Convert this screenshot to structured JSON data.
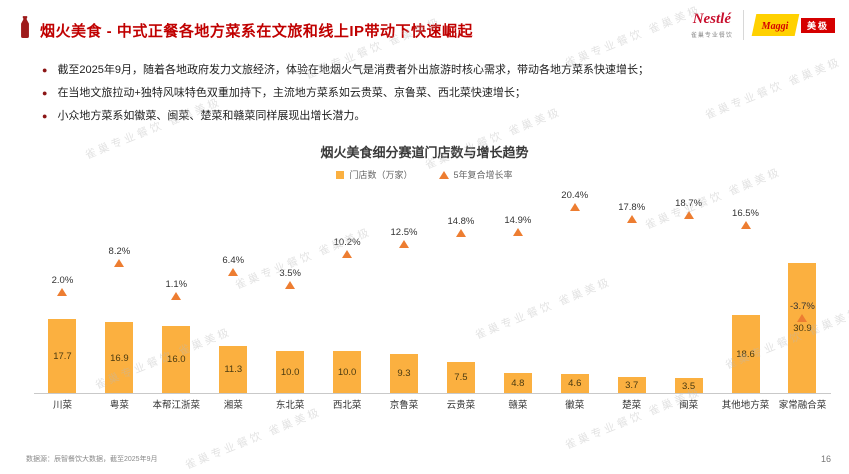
{
  "header": {
    "title": "烟火美食 - 中式正餐各地方菜系在文旅和线上IP带动下快速崛起",
    "nestle_logo": "Nestlé",
    "nestle_sub": "雀巢专业餐饮",
    "maggi_logo": "Maggi",
    "maggi_sub": "美极"
  },
  "bullets": [
    "截至2025年9月，随着各地政府发力文旅经济，体验在地烟火气是消费者外出旅游时核心需求，带动各地方菜系快速增长；",
    "在当地文旅拉动+独特风味特色双重加持下，主流地方菜系如云贵菜、京鲁菜、西北菜快速增长；",
    "小众地方菜系如徽菜、闽菜、楚菜和赣菜同样展现出增长潜力。"
  ],
  "chart_data": {
    "type": "bar",
    "title": "烟火美食细分赛道门店数与增长趋势",
    "legend": [
      "门店数（万家）",
      "5年复合增长率"
    ],
    "categories": [
      "川菜",
      "粤菜",
      "本帮江浙菜",
      "湘菜",
      "东北菜",
      "西北菜",
      "京鲁菜",
      "云贵菜",
      "赣菜",
      "徽菜",
      "楚菜",
      "闽菜",
      "其他地方菜",
      "家常融合菜"
    ],
    "series": [
      {
        "name": "门店数（万家）",
        "values": [
          17.7,
          16.9,
          16.0,
          11.3,
          10.0,
          10.0,
          9.3,
          7.5,
          4.8,
          4.6,
          3.7,
          3.5,
          18.6,
          30.9
        ]
      },
      {
        "name": "5年复合增长率",
        "values_pct": [
          2.0,
          8.2,
          1.1,
          6.4,
          3.5,
          10.2,
          12.5,
          14.8,
          14.9,
          20.4,
          17.8,
          18.7,
          16.5,
          -3.7
        ]
      }
    ],
    "colors": {
      "bar": "#FBB040",
      "marker": "#ED7D31"
    },
    "grid": false,
    "legend_position": "top-center"
  },
  "footer": {
    "source": "数据源：辰智餐饮大数据，截至2025年9月",
    "page": "16"
  },
  "watermark": {
    "text": "雀巢专业餐饮 雀巢美极"
  }
}
